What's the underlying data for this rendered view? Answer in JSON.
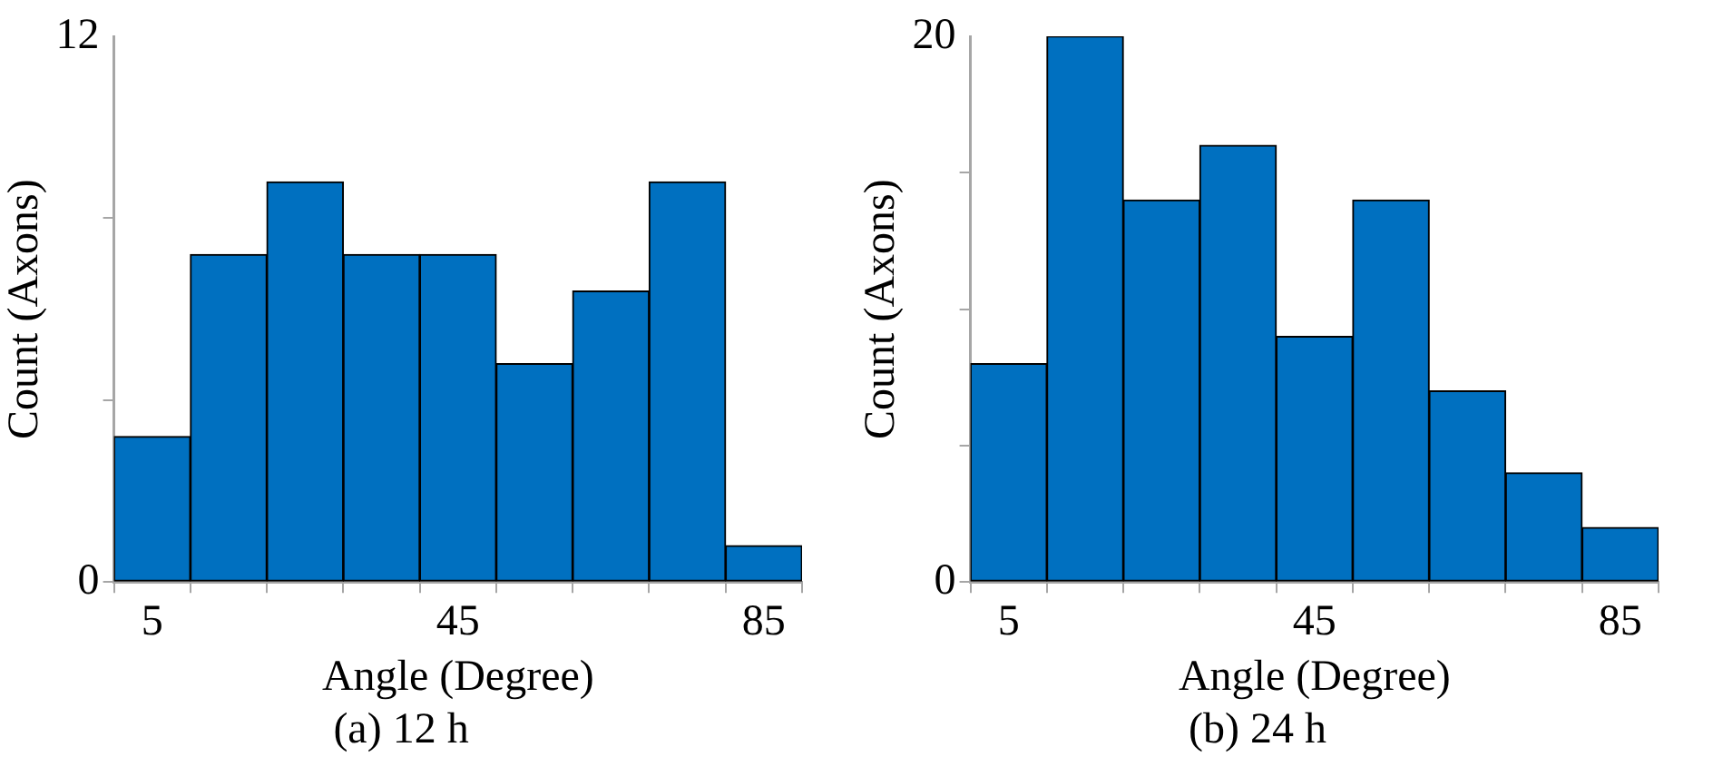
{
  "chart_data": [
    {
      "type": "histogram",
      "title": "(a) 12 h",
      "xlabel": "Angle (Degree)",
      "ylabel": "Count (Axons)",
      "bins": [
        0,
        10,
        20,
        30,
        40,
        50,
        60,
        70,
        80,
        90
      ],
      "values": [
        3.2,
        7.2,
        8.8,
        7.2,
        7.2,
        4.8,
        6.4,
        8.8,
        0.8
      ],
      "color": "#0070c0",
      "xlim": [
        0,
        90
      ],
      "xticks": [
        {
          "value": 0,
          "label": null
        },
        5,
        {
          "value": 10,
          "label": null
        },
        {
          "value": 20,
          "label": null
        },
        {
          "value": 30,
          "label": null
        },
        {
          "value": 40,
          "label": null
        },
        45,
        {
          "value": 50,
          "label": null
        },
        {
          "value": 60,
          "label": null
        },
        {
          "value": 70,
          "label": null
        },
        {
          "value": 80,
          "label": null
        },
        85,
        {
          "value": 90,
          "label": null
        }
      ],
      "ylim": [
        0,
        12
      ],
      "yticks": [
        0,
        {
          "value": 4,
          "label": null
        },
        {
          "value": 8,
          "label": null
        },
        12
      ],
      "grid": false,
      "legend": false
    },
    {
      "type": "histogram",
      "title": "(b) 24 h",
      "xlabel": "Angle (Degree)",
      "ylabel": "Count (Axons)",
      "bins": [
        0,
        10,
        20,
        30,
        40,
        50,
        60,
        70,
        80,
        90
      ],
      "values": [
        8,
        20,
        14,
        16,
        9,
        14,
        7,
        4,
        2
      ],
      "color": "#0070c0",
      "xlim": [
        0,
        90
      ],
      "xticks": [
        {
          "value": 0,
          "label": null
        },
        5,
        {
          "value": 10,
          "label": null
        },
        {
          "value": 20,
          "label": null
        },
        {
          "value": 30,
          "label": null
        },
        {
          "value": 40,
          "label": null
        },
        45,
        {
          "value": 50,
          "label": null
        },
        {
          "value": 60,
          "label": null
        },
        {
          "value": 70,
          "label": null
        },
        {
          "value": 80,
          "label": null
        },
        85,
        {
          "value": 90,
          "label": null
        }
      ],
      "ylim": [
        0,
        20
      ],
      "yticks": [
        0,
        {
          "value": 5,
          "label": null
        },
        {
          "value": 10,
          "label": null
        },
        {
          "value": 15,
          "label": null
        },
        20
      ],
      "grid": false,
      "legend": false
    }
  ]
}
